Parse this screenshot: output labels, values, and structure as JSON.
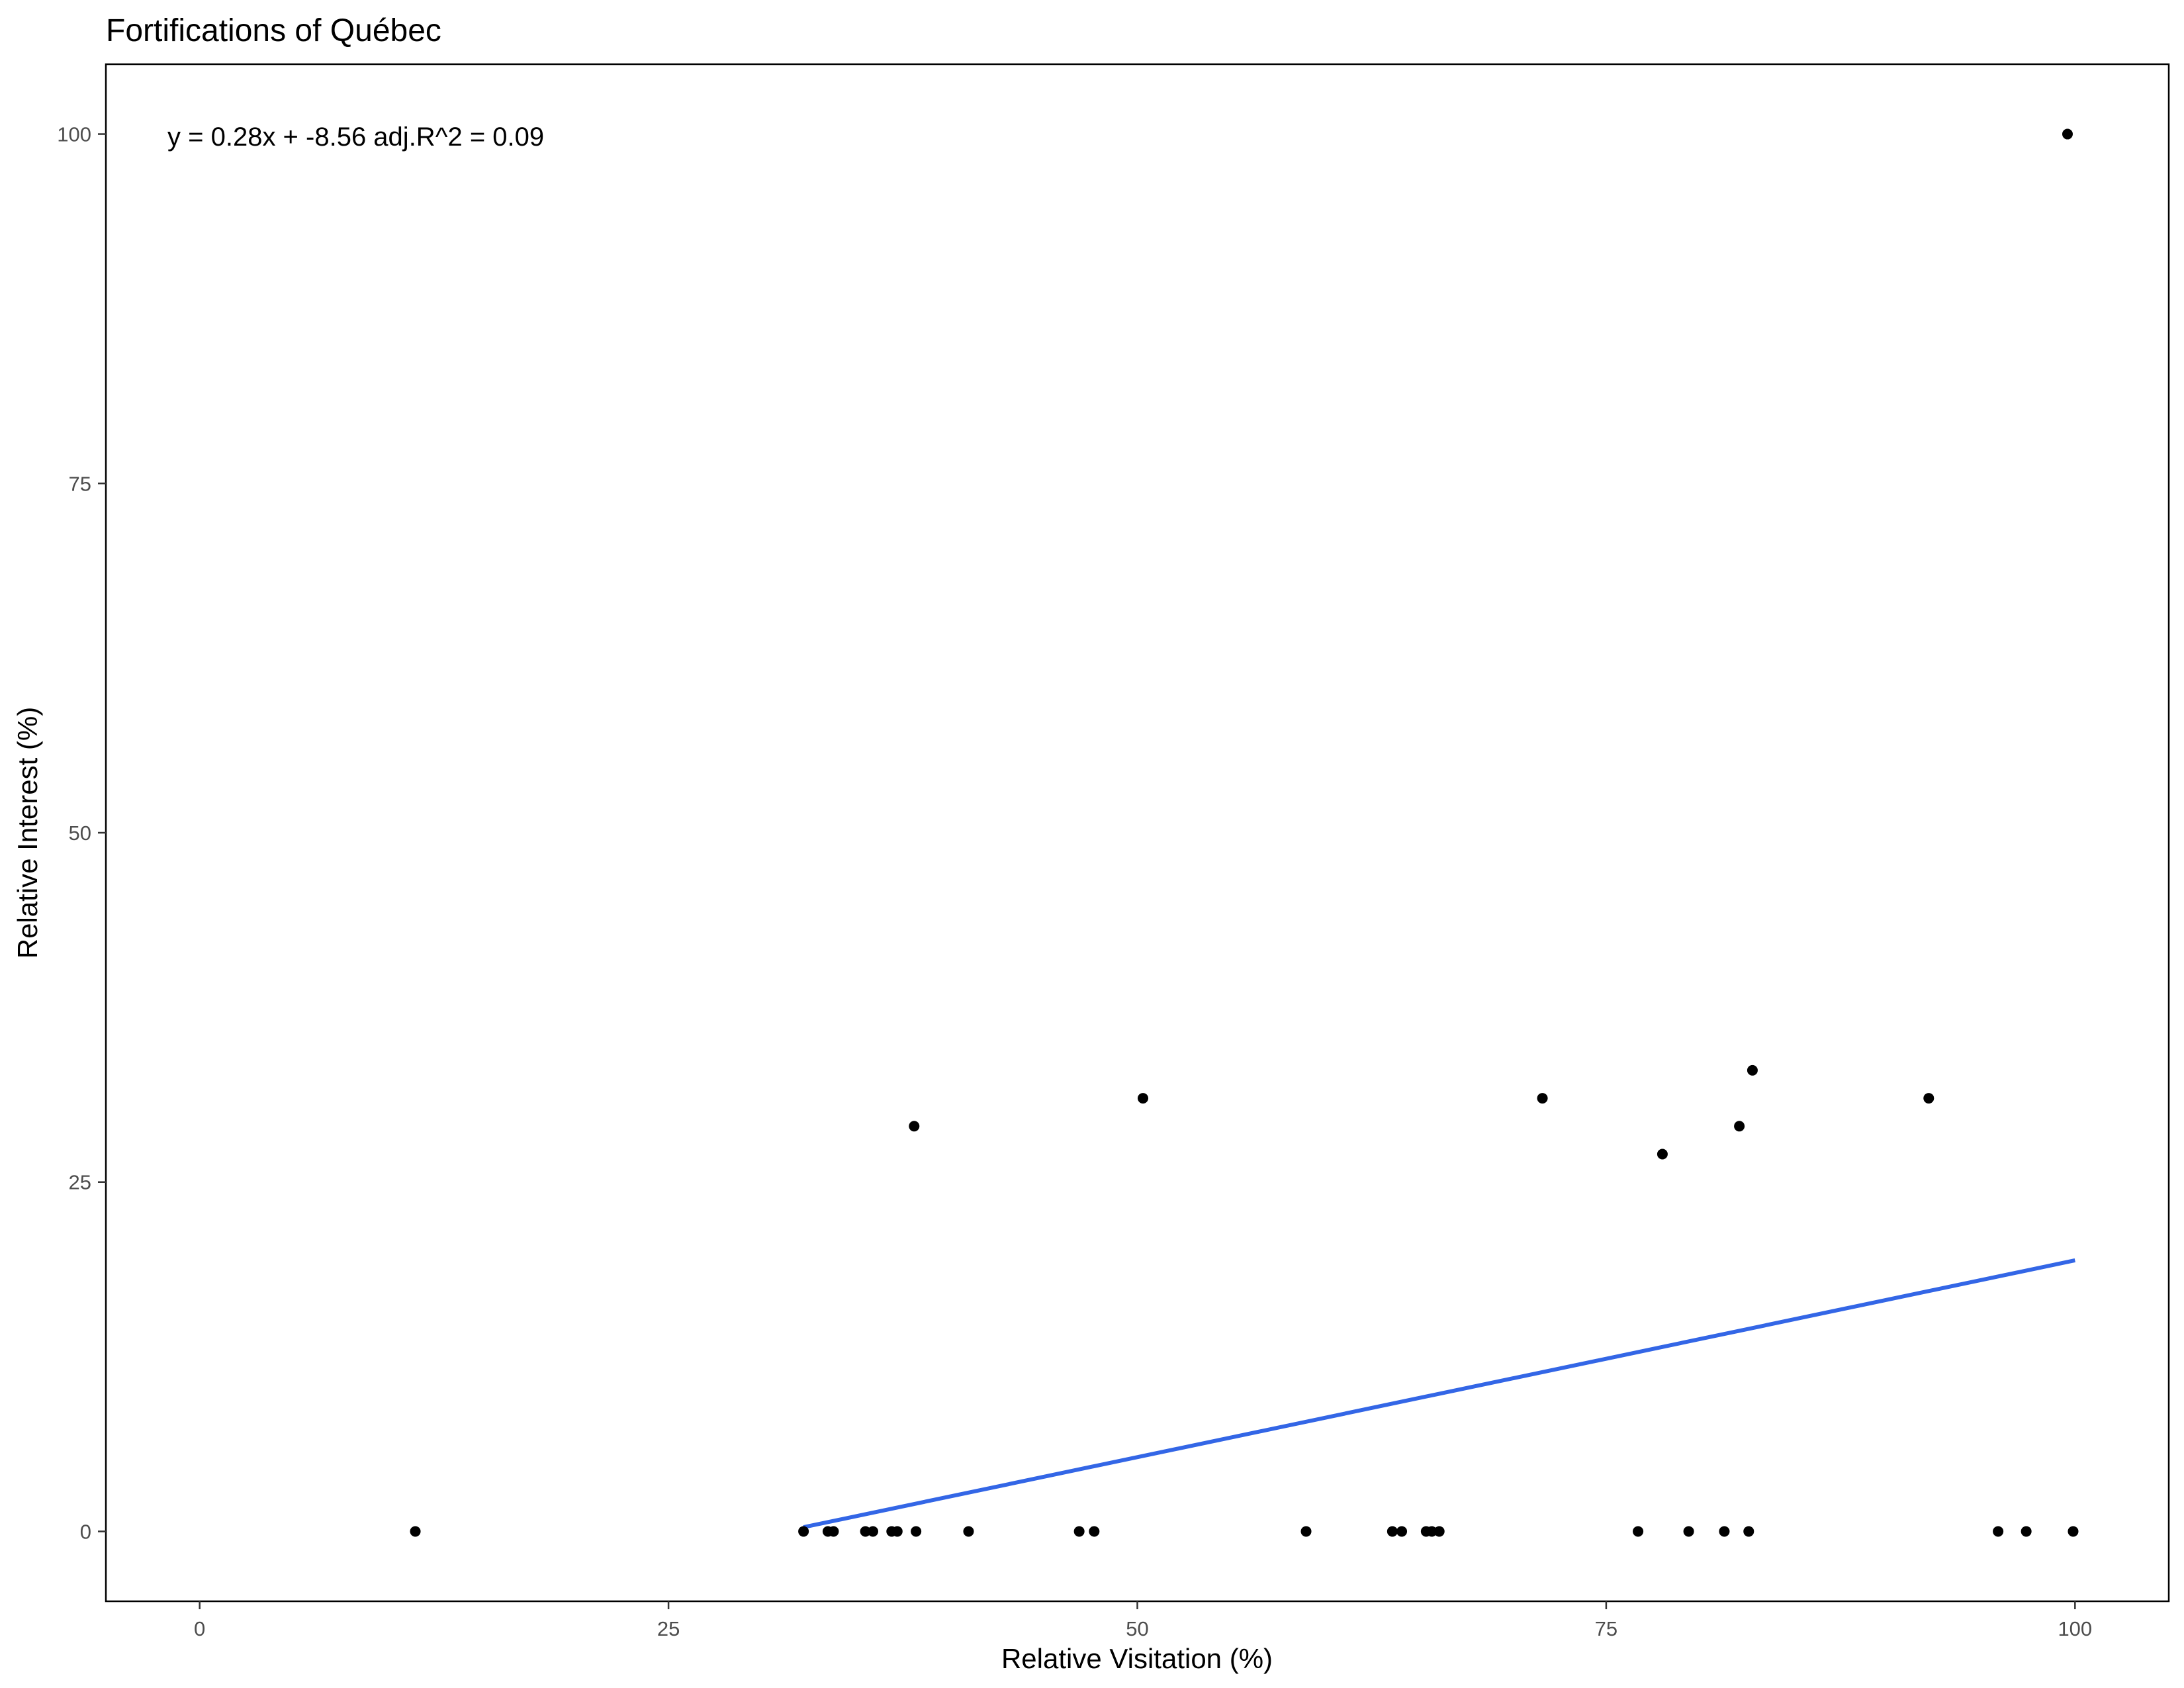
{
  "chart_data": {
    "type": "scatter",
    "title": "Fortifications of Québec",
    "xlabel": "Relative Visitation (%)",
    "ylabel": "Relative Interest (%)",
    "xlim": [
      -5,
      105
    ],
    "ylim": [
      -5,
      105
    ],
    "xticks": [
      0,
      25,
      50,
      75,
      100
    ],
    "yticks": [
      0,
      25,
      50,
      75,
      100
    ],
    "grid": false,
    "annotation": "y = 0.28x + -8.56 adj.R^2 = 0.09",
    "points": [
      {
        "x": 11.5,
        "y": 0
      },
      {
        "x": 32.2,
        "y": 0
      },
      {
        "x": 33.5,
        "y": 0
      },
      {
        "x": 33.8,
        "y": 0
      },
      {
        "x": 35.5,
        "y": 0
      },
      {
        "x": 35.9,
        "y": 0
      },
      {
        "x": 36.9,
        "y": 0
      },
      {
        "x": 37.2,
        "y": 0
      },
      {
        "x": 38.2,
        "y": 0
      },
      {
        "x": 38.1,
        "y": 29
      },
      {
        "x": 41.0,
        "y": 0
      },
      {
        "x": 46.9,
        "y": 0
      },
      {
        "x": 47.7,
        "y": 0
      },
      {
        "x": 50.3,
        "y": 31
      },
      {
        "x": 59.0,
        "y": 0
      },
      {
        "x": 63.6,
        "y": 0
      },
      {
        "x": 64.1,
        "y": 0
      },
      {
        "x": 65.4,
        "y": 0
      },
      {
        "x": 65.7,
        "y": 0
      },
      {
        "x": 66.1,
        "y": 0
      },
      {
        "x": 71.6,
        "y": 31
      },
      {
        "x": 76.7,
        "y": 0
      },
      {
        "x": 78.0,
        "y": 27
      },
      {
        "x": 79.4,
        "y": 0
      },
      {
        "x": 81.3,
        "y": 0
      },
      {
        "x": 82.1,
        "y": 29
      },
      {
        "x": 82.6,
        "y": 0
      },
      {
        "x": 82.8,
        "y": 33
      },
      {
        "x": 92.2,
        "y": 31
      },
      {
        "x": 95.9,
        "y": 0
      },
      {
        "x": 97.4,
        "y": 0
      },
      {
        "x": 99.6,
        "y": 100
      },
      {
        "x": 99.9,
        "y": 0
      }
    ],
    "fit_line": {
      "x": [
        32.2,
        100
      ],
      "y": [
        0.3,
        19.4
      ]
    },
    "colors": {
      "points": "#000000",
      "fit_line": "#3366e6",
      "panel_border": "#000000",
      "tick_label": "#4d4d4d"
    }
  }
}
